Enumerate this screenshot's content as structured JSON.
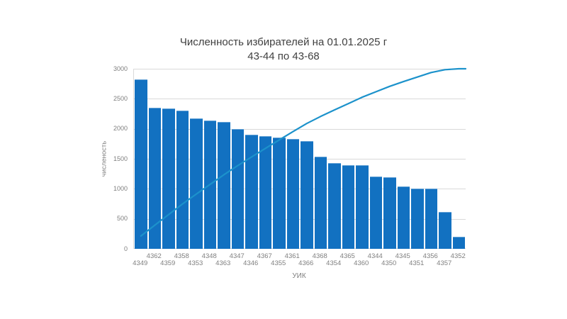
{
  "chart_data": {
    "type": "bar",
    "title": "Численность избирателей на 01.01.2025 г",
    "subtitle": "43-44 по 43-68",
    "xlabel": "УИК",
    "ylabel": "численость",
    "categories": [
      "4349",
      "4362",
      "4359",
      "4358",
      "4353",
      "4348",
      "4363",
      "4347",
      "4346",
      "4367",
      "4355",
      "4361",
      "4366",
      "4368",
      "4354",
      "4365",
      "4360",
      "4344",
      "4350",
      "4345",
      "4351",
      "4356",
      "4357",
      "4352"
    ],
    "values": [
      2820,
      2350,
      2340,
      2300,
      2170,
      2140,
      2110,
      2000,
      1905,
      1880,
      1855,
      1835,
      1790,
      1530,
      1430,
      1390,
      1390,
      1205,
      1190,
      1040,
      1000,
      1000,
      620,
      200
    ],
    "ylim": [
      0,
      3000
    ],
    "yticks": [
      0,
      500,
      1000,
      1500,
      2000,
      2500,
      3000
    ],
    "grid": "horizontal-gridlines-on",
    "legend": "none",
    "xtick_layout": "two-row-staggered",
    "overlay_line": {
      "name": "cumulative-curve",
      "description": "smooth cumulative sum of bar values rescaled so it ends at y-axis max 3000 at the last category (Pareto-style line)",
      "start_value": 214,
      "end_value": 3000
    },
    "colors": {
      "bar": "#1271c1",
      "line": "#1c92cb",
      "grid": "#d9d9d9",
      "tick_text": "#7f7f7f",
      "title_text": "#404040",
      "background": "#ffffff"
    }
  }
}
